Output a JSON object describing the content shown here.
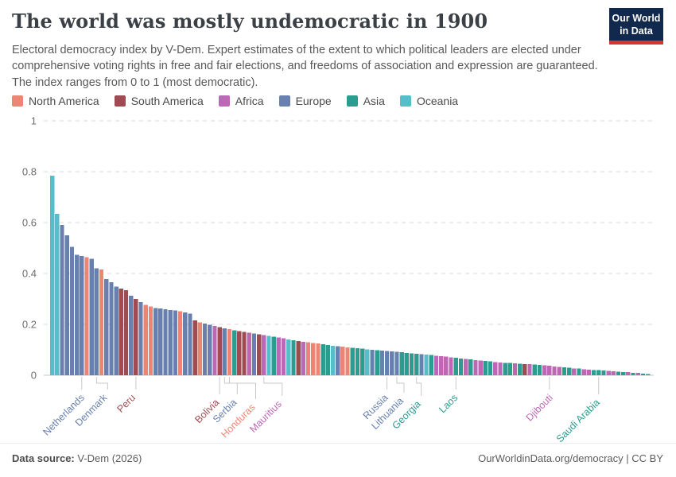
{
  "header": {
    "title": "The world was mostly undemocratic in 1900",
    "subtitle": "Electoral democracy index by V-Dem. Expert estimates of the extent to which political leaders are elected under comprehensive voting rights in free and fair elections, and freedoms of association and expression are guaranteed. The index ranges from 0 to 1 (most democratic).",
    "logo": {
      "line1": "Our World",
      "line2": "in Data",
      "bg_color": "#12294e",
      "accent_color": "#d8352e"
    }
  },
  "legend": {
    "items": [
      {
        "label": "North America",
        "continent": "NA"
      },
      {
        "label": "South America",
        "continent": "SA"
      },
      {
        "label": "Africa",
        "continent": "AF"
      },
      {
        "label": "Europe",
        "continent": "EU"
      },
      {
        "label": "Asia",
        "continent": "AS"
      },
      {
        "label": "Oceania",
        "continent": "OC"
      }
    ]
  },
  "chart_data": {
    "type": "bar",
    "title": "The world was mostly undemocratic in 1900",
    "ylabel": "Electoral democracy index",
    "ylim": [
      0,
      1
    ],
    "grid": true,
    "yticks": [
      {
        "v": 0,
        "label": "0"
      },
      {
        "v": 0.2,
        "label": "0.2"
      },
      {
        "v": 0.4,
        "label": "0.4"
      },
      {
        "v": 0.6,
        "label": "0.6"
      },
      {
        "v": 0.8,
        "label": "0.8"
      },
      {
        "v": 1,
        "label": "1"
      }
    ],
    "continents": {
      "NA": {
        "name": "North America",
        "color": "#ed8575"
      },
      "SA": {
        "name": "South America",
        "color": "#9e4c52"
      },
      "AF": {
        "name": "Africa",
        "color": "#bd68b5"
      },
      "EU": {
        "name": "Europe",
        "color": "#6880ae"
      },
      "AS": {
        "name": "Asia",
        "color": "#2a9c90"
      },
      "OC": {
        "name": "Oceania",
        "color": "#56bec9"
      }
    },
    "bars": [
      {
        "v": 0.785,
        "c": "OC"
      },
      {
        "v": 0.635,
        "c": "OC"
      },
      {
        "v": 0.59,
        "c": "EU"
      },
      {
        "v": 0.55,
        "c": "EU"
      },
      {
        "v": 0.505,
        "c": "EU"
      },
      {
        "v": 0.473,
        "c": "EU"
      },
      {
        "v": 0.468,
        "c": "EU"
      },
      {
        "v": 0.464,
        "c": "NA"
      },
      {
        "v": 0.458,
        "c": "EU"
      },
      {
        "v": 0.421,
        "c": "EU"
      },
      {
        "v": 0.415,
        "c": "NA"
      },
      {
        "v": 0.378,
        "c": "EU"
      },
      {
        "v": 0.366,
        "c": "EU"
      },
      {
        "v": 0.348,
        "c": "EU"
      },
      {
        "v": 0.341,
        "c": "SA"
      },
      {
        "v": 0.334,
        "c": "SA"
      },
      {
        "v": 0.313,
        "c": "EU"
      },
      {
        "v": 0.3,
        "c": "SA"
      },
      {
        "v": 0.287,
        "c": "EU"
      },
      {
        "v": 0.277,
        "c": "NA"
      },
      {
        "v": 0.27,
        "c": "NA"
      },
      {
        "v": 0.264,
        "c": "EU"
      },
      {
        "v": 0.262,
        "c": "EU"
      },
      {
        "v": 0.26,
        "c": "EU"
      },
      {
        "v": 0.257,
        "c": "EU"
      },
      {
        "v": 0.254,
        "c": "EU"
      },
      {
        "v": 0.251,
        "c": "NA"
      },
      {
        "v": 0.247,
        "c": "EU"
      },
      {
        "v": 0.242,
        "c": "EU"
      },
      {
        "v": 0.215,
        "c": "SA"
      },
      {
        "v": 0.208,
        "c": "NA"
      },
      {
        "v": 0.203,
        "c": "EU"
      },
      {
        "v": 0.199,
        "c": "EU"
      },
      {
        "v": 0.193,
        "c": "AF"
      },
      {
        "v": 0.189,
        "c": "SA"
      },
      {
        "v": 0.185,
        "c": "EU"
      },
      {
        "v": 0.181,
        "c": "NA"
      },
      {
        "v": 0.176,
        "c": "AS"
      },
      {
        "v": 0.173,
        "c": "SA"
      },
      {
        "v": 0.17,
        "c": "SA"
      },
      {
        "v": 0.167,
        "c": "AF"
      },
      {
        "v": 0.164,
        "c": "EU"
      },
      {
        "v": 0.161,
        "c": "SA"
      },
      {
        "v": 0.158,
        "c": "AF"
      },
      {
        "v": 0.155,
        "c": "OC"
      },
      {
        "v": 0.151,
        "c": "AS"
      },
      {
        "v": 0.148,
        "c": "AF"
      },
      {
        "v": 0.145,
        "c": "AF"
      },
      {
        "v": 0.141,
        "c": "OC"
      },
      {
        "v": 0.138,
        "c": "AS"
      },
      {
        "v": 0.135,
        "c": "SA"
      },
      {
        "v": 0.132,
        "c": "AF"
      },
      {
        "v": 0.129,
        "c": "NA"
      },
      {
        "v": 0.127,
        "c": "NA"
      },
      {
        "v": 0.125,
        "c": "NA"
      },
      {
        "v": 0.122,
        "c": "AS"
      },
      {
        "v": 0.119,
        "c": "AS"
      },
      {
        "v": 0.116,
        "c": "OC"
      },
      {
        "v": 0.114,
        "c": "EU"
      },
      {
        "v": 0.112,
        "c": "NA"
      },
      {
        "v": 0.11,
        "c": "NA"
      },
      {
        "v": 0.108,
        "c": "AS"
      },
      {
        "v": 0.106,
        "c": "AS"
      },
      {
        "v": 0.104,
        "c": "AS"
      },
      {
        "v": 0.102,
        "c": "OC"
      },
      {
        "v": 0.1,
        "c": "EU"
      },
      {
        "v": 0.099,
        "c": "AS"
      },
      {
        "v": 0.097,
        "c": "EU"
      },
      {
        "v": 0.095,
        "c": "EU"
      },
      {
        "v": 0.093,
        "c": "EU"
      },
      {
        "v": 0.092,
        "c": "EU"
      },
      {
        "v": 0.09,
        "c": "AS"
      },
      {
        "v": 0.088,
        "c": "AS"
      },
      {
        "v": 0.086,
        "c": "AS"
      },
      {
        "v": 0.085,
        "c": "AS"
      },
      {
        "v": 0.083,
        "c": "EU"
      },
      {
        "v": 0.081,
        "c": "OC"
      },
      {
        "v": 0.079,
        "c": "AS"
      },
      {
        "v": 0.077,
        "c": "AF"
      },
      {
        "v": 0.075,
        "c": "AF"
      },
      {
        "v": 0.073,
        "c": "AF"
      },
      {
        "v": 0.07,
        "c": "AF"
      },
      {
        "v": 0.068,
        "c": "AS"
      },
      {
        "v": 0.066,
        "c": "AS"
      },
      {
        "v": 0.064,
        "c": "AF"
      },
      {
        "v": 0.062,
        "c": "AS"
      },
      {
        "v": 0.06,
        "c": "AF"
      },
      {
        "v": 0.058,
        "c": "AF"
      },
      {
        "v": 0.056,
        "c": "AS"
      },
      {
        "v": 0.054,
        "c": "AS"
      },
      {
        "v": 0.052,
        "c": "AF"
      },
      {
        "v": 0.05,
        "c": "AF"
      },
      {
        "v": 0.049,
        "c": "AS"
      },
      {
        "v": 0.048,
        "c": "AS"
      },
      {
        "v": 0.047,
        "c": "AF"
      },
      {
        "v": 0.046,
        "c": "AS"
      },
      {
        "v": 0.044,
        "c": "SA"
      },
      {
        "v": 0.043,
        "c": "AF"
      },
      {
        "v": 0.042,
        "c": "AS"
      },
      {
        "v": 0.04,
        "c": "AS"
      },
      {
        "v": 0.039,
        "c": "AF"
      },
      {
        "v": 0.037,
        "c": "AF"
      },
      {
        "v": 0.035,
        "c": "AF"
      },
      {
        "v": 0.033,
        "c": "AF"
      },
      {
        "v": 0.031,
        "c": "AS"
      },
      {
        "v": 0.029,
        "c": "AS"
      },
      {
        "v": 0.027,
        "c": "AF"
      },
      {
        "v": 0.026,
        "c": "AS"
      },
      {
        "v": 0.024,
        "c": "AF"
      },
      {
        "v": 0.022,
        "c": "AF"
      },
      {
        "v": 0.021,
        "c": "AS"
      },
      {
        "v": 0.02,
        "c": "AS"
      },
      {
        "v": 0.018,
        "c": "AS"
      },
      {
        "v": 0.017,
        "c": "AF"
      },
      {
        "v": 0.016,
        "c": "AF"
      },
      {
        "v": 0.014,
        "c": "AS"
      },
      {
        "v": 0.013,
        "c": "AS"
      },
      {
        "v": 0.012,
        "c": "AF"
      },
      {
        "v": 0.01,
        "c": "AS"
      },
      {
        "v": 0.009,
        "c": "AF"
      },
      {
        "v": 0.007,
        "c": "AS"
      },
      {
        "v": 0.005,
        "c": "AS"
      }
    ],
    "labeled_countries": [
      {
        "label": "Netherlands",
        "bar": 7
      },
      {
        "label": "Denmark",
        "bar": 10
      },
      {
        "label": "Peru",
        "bar": 18
      },
      {
        "label": "Bolivia",
        "bar": 35
      },
      {
        "label": "Serbia",
        "bar": 36
      },
      {
        "label": "Honduras",
        "bar": 37
      },
      {
        "label": "Mauritius",
        "bar": 44
      },
      {
        "label": "Russia",
        "bar": 69
      },
      {
        "label": "Lithuania",
        "bar": 71
      },
      {
        "label": "Georgia",
        "bar": 75
      },
      {
        "label": "Laos",
        "bar": 83
      },
      {
        "label": "Djibouti",
        "bar": 102
      },
      {
        "label": "Saudi Arabia",
        "bar": 112
      }
    ]
  },
  "footer": {
    "source_label": "Data source:",
    "source_value": " V-Dem (2026)",
    "link": "OurWorldinData.org/democracy",
    "separator": " | ",
    "license": "CC BY"
  }
}
